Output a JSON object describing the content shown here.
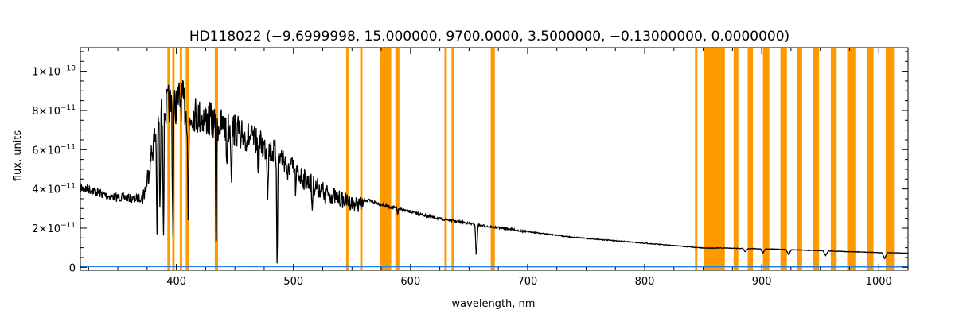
{
  "chart_data": {
    "type": "line",
    "title": "HD118022   (−9.6999998, 15.000000, 9700.0000, 3.5000000, −0.13000000, 0.0000000)",
    "xlabel": "wavelength, nm",
    "ylabel": "flux, units",
    "xlim": [
      318,
      1025
    ],
    "ylim": [
      -1.5e-12,
      1.12e-10
    ],
    "x_ticks": [
      400,
      500,
      600,
      700,
      800,
      900,
      1000
    ],
    "y_ticks": [
      {
        "value": 0,
        "mantissa": "0",
        "exponent": ""
      },
      {
        "value": 2e-11,
        "mantissa": "2×10",
        "exponent": "−11"
      },
      {
        "value": 4e-11,
        "mantissa": "4×10",
        "exponent": "−11"
      },
      {
        "value": 6e-11,
        "mantissa": "6×10",
        "exponent": "−11"
      },
      {
        "value": 8e-11,
        "mantissa": "8×10",
        "exponent": "−11"
      },
      {
        "value": 1e-10,
        "mantissa": "1×10",
        "exponent": "−10"
      }
    ],
    "grid": false,
    "masked_regions_nm": [
      [
        392.3,
        394.3
      ],
      [
        396.5,
        398.5
      ],
      [
        402.9,
        404.9
      ],
      [
        408.0,
        410.6
      ],
      [
        432.8,
        435.6
      ],
      [
        545.0,
        547.0
      ],
      [
        557.0,
        559.0
      ],
      [
        574.0,
        583.5
      ],
      [
        587.0,
        590.5
      ],
      [
        629.0,
        631.0
      ],
      [
        635.0,
        637.5
      ],
      [
        668.5,
        672.0
      ],
      [
        843.0,
        845.0
      ],
      [
        850.5,
        868.5
      ],
      [
        876.0,
        880.0
      ],
      [
        888.0,
        892.5
      ],
      [
        901.0,
        906.5
      ],
      [
        916.0,
        921.5
      ],
      [
        930.5,
        934.5
      ],
      [
        943.5,
        949.0
      ],
      [
        959.0,
        964.0
      ],
      [
        973.0,
        980.0
      ],
      [
        990.0,
        995.5
      ],
      [
        1006.0,
        1013.0
      ]
    ],
    "series": [
      {
        "color": "#000000",
        "x": [
          318,
          325,
          332,
          340,
          348,
          356,
          364,
          370,
          374,
          378,
          382,
          386,
          390,
          394,
          398,
          402,
          406,
          410,
          414,
          418,
          422,
          426,
          430,
          434,
          440,
          446,
          452,
          460,
          470,
          480,
          490,
          500,
          510,
          520,
          530,
          540,
          550,
          560,
          570,
          575,
          580,
          590,
          600,
          610,
          620,
          630,
          640,
          650,
          660,
          670,
          680,
          690,
          700,
          720,
          740,
          760,
          780,
          800,
          820,
          840,
          849,
          870,
          880,
          890,
          900,
          910,
          920,
          930,
          940,
          950,
          960,
          970,
          980,
          990,
          1000,
          1010,
          1020,
          1025
        ],
        "y": [
          4.3e-11,
          4.25e-11,
          4.1e-11,
          3.9e-11,
          3.8e-11,
          3.8e-11,
          3.7e-11,
          3.8e-11,
          4.6e-11,
          6.2e-11,
          7.6e-11,
          8.6e-11,
          9e-11,
          9.4e-11,
          9.1e-11,
          9.6e-11,
          9.5e-11,
          8.3e-11,
          8.9e-11,
          8.7e-11,
          8.6e-11,
          8.5e-11,
          8.4e-11,
          8.2e-11,
          8.1e-11,
          8e-11,
          7.8e-11,
          7.5e-11,
          7.1e-11,
          6.7e-11,
          6.3e-11,
          5.6e-11,
          5e-11,
          4.6e-11,
          4.2e-11,
          3.9e-11,
          3.7e-11,
          3.55e-11,
          3.4e-11,
          3.3e-11,
          3.2e-11,
          3.05e-11,
          2.9e-11,
          2.75e-11,
          2.6e-11,
          2.5e-11,
          2.4e-11,
          2.3e-11,
          2.2e-11,
          2.1e-11,
          2.05e-11,
          1.95e-11,
          1.85e-11,
          1.7e-11,
          1.55e-11,
          1.45e-11,
          1.35e-11,
          1.25e-11,
          1.15e-11,
          1.05e-11,
          1e-11,
          1e-11,
          9.8e-12,
          9.7e-12,
          9.6e-12,
          9.4e-12,
          9.2e-12,
          9e-12,
          8.8e-12,
          8.6e-12,
          8.4e-12,
          8.2e-12,
          8e-12,
          7.8e-12,
          7.6e-12,
          7.5e-12,
          7.4e-12,
          7.3e-12
        ],
        "absorption_lines": [
          {
            "x": 383.5,
            "y": 2e-11
          },
          {
            "x": 386.0,
            "y": 3e-11
          },
          {
            "x": 389.0,
            "y": 2.6e-11
          },
          {
            "x": 397.0,
            "y": 2.2e-11
          },
          {
            "x": 410.2,
            "y": 2.5e-11
          },
          {
            "x": 434.0,
            "y": 1.2e-11
          },
          {
            "x": 443.0,
            "y": 6e-11
          },
          {
            "x": 447.0,
            "y": 5.5e-11
          },
          {
            "x": 455.0,
            "y": 6.2e-11
          },
          {
            "x": 470.0,
            "y": 5.9e-11
          },
          {
            "x": 478.0,
            "y": 4.5e-11
          },
          {
            "x": 486.1,
            "y": 8e-12
          },
          {
            "x": 495.0,
            "y": 4.6e-11
          },
          {
            "x": 502.0,
            "y": 4.3e-11
          },
          {
            "x": 516.0,
            "y": 3.4e-11
          },
          {
            "x": 527.0,
            "y": 3.6e-11
          },
          {
            "x": 589.0,
            "y": 2.8e-11
          },
          {
            "x": 656.3,
            "y": 5e-12
          },
          {
            "x": 886.0,
            "y": 8e-12
          },
          {
            "x": 901.0,
            "y": 7.5e-12
          },
          {
            "x": 923.0,
            "y": 6.5e-12
          },
          {
            "x": 954.6,
            "y": 6e-12
          },
          {
            "x": 1005.0,
            "y": 4.5e-12
          }
        ]
      },
      {
        "color": "#1e82e6",
        "x": [
          318,
          1025
        ],
        "y": [
          4e-13,
          2e-13
        ]
      }
    ]
  }
}
